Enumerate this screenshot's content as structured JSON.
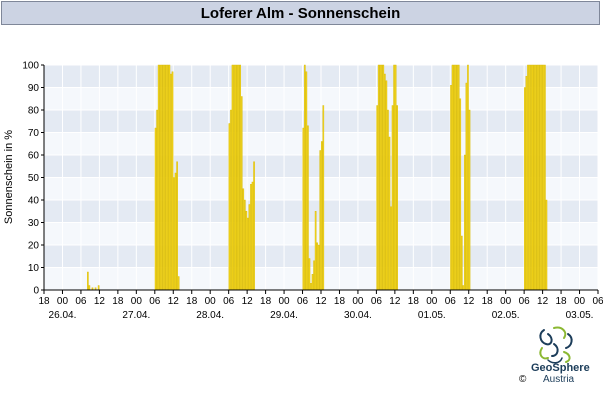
{
  "title": "Loferer Alm - Sonnenschein",
  "brand": {
    "name": "GeoSphere",
    "sub": "Austria",
    "copyright": "©"
  },
  "colors": {
    "bar": "#f2d41d",
    "bar_edge": "#d6b800",
    "band_dark": "#e4eaf3",
    "band_light": "#f5f8fc",
    "grid": "#ffffff",
    "axis": "#000000",
    "title_bg": "#ccd3e3"
  },
  "chart_data": {
    "type": "bar",
    "title": "Loferer Alm - Sonnenschein",
    "ylabel": "Sonnenschein in %",
    "xlabel": "",
    "ylim": [
      0,
      100
    ],
    "yticks": [
      0,
      10,
      20,
      30,
      40,
      50,
      60,
      70,
      80,
      90,
      100
    ],
    "xlim_hours": [
      -6,
      174
    ],
    "x_unit": "hour from 26.04. 00:00",
    "hour_ticks": [
      {
        "h": -6,
        "label": "18"
      },
      {
        "h": 0,
        "label": "00"
      },
      {
        "h": 6,
        "label": "06"
      },
      {
        "h": 12,
        "label": "12"
      },
      {
        "h": 18,
        "label": "18"
      },
      {
        "h": 24,
        "label": "00"
      },
      {
        "h": 30,
        "label": "06"
      },
      {
        "h": 36,
        "label": "12"
      },
      {
        "h": 42,
        "label": "18"
      },
      {
        "h": 48,
        "label": "00"
      },
      {
        "h": 54,
        "label": "06"
      },
      {
        "h": 60,
        "label": "12"
      },
      {
        "h": 66,
        "label": "18"
      },
      {
        "h": 72,
        "label": "00"
      },
      {
        "h": 78,
        "label": "06"
      },
      {
        "h": 84,
        "label": "12"
      },
      {
        "h": 90,
        "label": "18"
      },
      {
        "h": 96,
        "label": "00"
      },
      {
        "h": 102,
        "label": "06"
      },
      {
        "h": 108,
        "label": "12"
      },
      {
        "h": 114,
        "label": "18"
      },
      {
        "h": 120,
        "label": "00"
      },
      {
        "h": 126,
        "label": "06"
      },
      {
        "h": 132,
        "label": "12"
      },
      {
        "h": 138,
        "label": "18"
      },
      {
        "h": 144,
        "label": "00"
      },
      {
        "h": 150,
        "label": "06"
      },
      {
        "h": 156,
        "label": "12"
      },
      {
        "h": 162,
        "label": "18"
      },
      {
        "h": 168,
        "label": "00"
      },
      {
        "h": 174,
        "label": "06"
      }
    ],
    "date_labels": [
      {
        "h": 0,
        "label": "26.04."
      },
      {
        "h": 24,
        "label": "27.04."
      },
      {
        "h": 48,
        "label": "28.04."
      },
      {
        "h": 72,
        "label": "29.04."
      },
      {
        "h": 96,
        "label": "30.04."
      },
      {
        "h": 120,
        "label": "01.05."
      },
      {
        "h": 144,
        "label": "02.05."
      },
      {
        "h": 168,
        "label": "03.05."
      }
    ],
    "series": [
      {
        "values": [
          [
            8,
            8
          ],
          [
            8.5,
            2
          ],
          [
            9.5,
            1
          ],
          [
            10.5,
            1
          ],
          [
            11.5,
            2
          ],
          [
            30,
            72
          ],
          [
            30.5,
            80
          ],
          [
            31,
            100
          ],
          [
            31.5,
            100
          ],
          [
            32,
            100
          ],
          [
            32.5,
            100
          ],
          [
            33,
            100
          ],
          [
            33.5,
            100
          ],
          [
            34,
            100
          ],
          [
            34.5,
            100
          ],
          [
            35,
            96
          ],
          [
            35.5,
            97
          ],
          [
            36,
            50
          ],
          [
            36.5,
            52
          ],
          [
            37,
            57
          ],
          [
            37.5,
            6
          ],
          [
            54,
            74
          ],
          [
            54.5,
            80
          ],
          [
            55,
            100
          ],
          [
            55.5,
            100
          ],
          [
            56,
            100
          ],
          [
            56.5,
            100
          ],
          [
            57,
            100
          ],
          [
            57.5,
            100
          ],
          [
            58,
            86
          ],
          [
            58.5,
            45
          ],
          [
            59,
            40
          ],
          [
            59.5,
            35
          ],
          [
            60,
            32
          ],
          [
            60.5,
            38
          ],
          [
            61,
            47
          ],
          [
            61.5,
            48
          ],
          [
            62,
            57
          ],
          [
            78,
            72
          ],
          [
            78.5,
            100
          ],
          [
            79,
            97
          ],
          [
            79.5,
            73
          ],
          [
            80,
            14
          ],
          [
            80.5,
            3
          ],
          [
            81,
            7
          ],
          [
            81.5,
            13
          ],
          [
            82,
            35
          ],
          [
            82.5,
            21
          ],
          [
            83,
            20
          ],
          [
            83.5,
            62
          ],
          [
            84,
            66
          ],
          [
            84.5,
            82
          ],
          [
            102,
            82
          ],
          [
            102.5,
            100
          ],
          [
            103,
            100
          ],
          [
            103.5,
            100
          ],
          [
            104,
            100
          ],
          [
            104.5,
            96
          ],
          [
            105,
            93
          ],
          [
            105.5,
            80
          ],
          [
            106,
            68
          ],
          [
            106.5,
            37
          ],
          [
            107,
            82
          ],
          [
            107.5,
            100
          ],
          [
            108,
            100
          ],
          [
            108.5,
            82
          ],
          [
            126,
            91
          ],
          [
            126.5,
            100
          ],
          [
            127,
            100
          ],
          [
            127.5,
            100
          ],
          [
            128,
            100
          ],
          [
            128.5,
            100
          ],
          [
            129,
            85
          ],
          [
            129.5,
            24
          ],
          [
            130,
            2
          ],
          [
            130.5,
            60
          ],
          [
            131,
            92
          ],
          [
            131.5,
            100
          ],
          [
            132,
            80
          ],
          [
            150,
            90
          ],
          [
            150.5,
            95
          ],
          [
            151,
            100
          ],
          [
            151.5,
            100
          ],
          [
            152,
            100
          ],
          [
            152.5,
            100
          ],
          [
            153,
            100
          ],
          [
            153.5,
            100
          ],
          [
            154,
            100
          ],
          [
            154.5,
            100
          ],
          [
            155,
            100
          ],
          [
            155.5,
            100
          ],
          [
            156,
            100
          ],
          [
            156.5,
            100
          ],
          [
            157,
            40
          ]
        ]
      }
    ],
    "grid": true
  }
}
